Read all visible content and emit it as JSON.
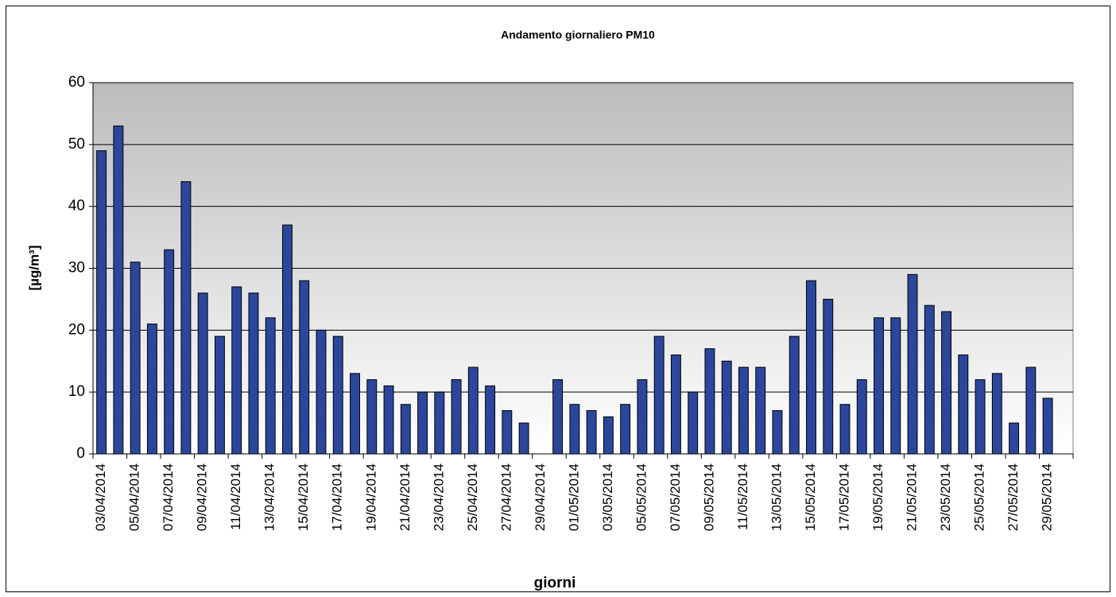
{
  "chart_data": {
    "type": "bar",
    "title": "Andamento giornaliero PM10",
    "y_label": "[µg/m³]",
    "x_label": "giorni",
    "categories": [
      "03/04/2014",
      null,
      "05/04/2014",
      null,
      "07/04/2014",
      null,
      "09/04/2014",
      null,
      "11/04/2014",
      null,
      "13/04/2014",
      null,
      "15/04/2014",
      null,
      "17/04/2014",
      null,
      "19/04/2014",
      null,
      "21/04/2014",
      null,
      "23/04/2014",
      null,
      "25/04/2014",
      null,
      "27/04/2014",
      null,
      "29/04/2014",
      null,
      "01/05/2014",
      null,
      "03/05/2014",
      null,
      "05/05/2014",
      null,
      "07/05/2014",
      null,
      "09/05/2014",
      null,
      "11/05/2014",
      null,
      "13/05/2014",
      null,
      "15/05/2014",
      null,
      "17/05/2014",
      null,
      "19/05/2014",
      null,
      "21/05/2014",
      null,
      "23/05/2014",
      null,
      "25/05/2014",
      null,
      "27/05/2014",
      null,
      "29/05/2014",
      null
    ],
    "values": [
      49,
      53,
      31,
      21,
      33,
      44,
      26,
      19,
      27,
      26,
      22,
      37,
      28,
      20,
      19,
      13,
      12,
      11,
      8,
      10,
      10,
      12,
      14,
      11,
      7,
      5,
      null,
      12,
      8,
      7,
      6,
      8,
      12,
      19,
      16,
      10,
      17,
      15,
      14,
      14,
      7,
      19,
      28,
      25,
      8,
      12,
      22,
      22,
      29,
      24,
      23,
      16,
      12,
      13,
      5,
      14,
      9,
      null
    ],
    "color": "#2b479b",
    "ylim": [
      0,
      60
    ],
    "yticks": [
      0,
      10,
      20,
      30,
      40,
      50,
      60
    ],
    "grid": true
  }
}
